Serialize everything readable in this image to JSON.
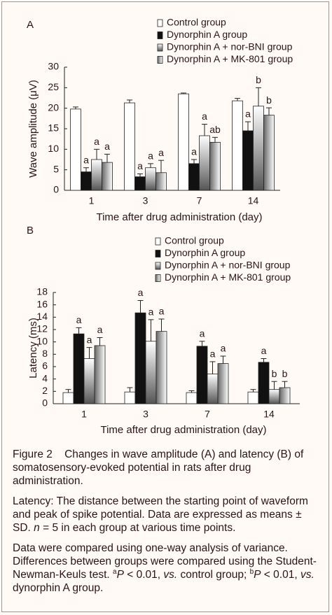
{
  "chart_data": [
    {
      "type": "bar",
      "panel_label": "A",
      "ylabel": "Wave amplitude (μV)",
      "xlabel": "Time after drug administration (day)",
      "categories": [
        "1",
        "3",
        "7",
        "14"
      ],
      "ylim": [
        0,
        30
      ],
      "yticks": [
        0,
        5,
        10,
        15,
        20,
        25,
        30
      ],
      "series": [
        {
          "name": "Control group",
          "color": "#ffffff",
          "values": [
            19.8,
            21.3,
            23.5,
            21.8
          ],
          "errors": [
            0.5,
            0.7,
            0.2,
            0.6
          ],
          "labels": [
            null,
            null,
            null,
            null
          ]
        },
        {
          "name": "Dynorphin A group",
          "color": "#111111",
          "values": [
            4.5,
            3.3,
            6.5,
            14.5
          ],
          "errors": [
            1.0,
            0.7,
            1.0,
            2.2
          ],
          "labels": [
            "a",
            "a",
            "a",
            "a"
          ]
        },
        {
          "name": "Dynorphin A + nor-BNI group",
          "color": "#555555",
          "values": [
            7.5,
            5.5,
            13.3,
            20.5
          ],
          "errors": [
            2.5,
            1.0,
            2.8,
            4.5
          ],
          "labels": [
            "a",
            "a",
            "a",
            "b"
          ]
        },
        {
          "name": "Dynorphin A + MK-801 group",
          "color": "#666666",
          "values": [
            6.8,
            4.3,
            11.7,
            18.3
          ],
          "errors": [
            2.0,
            3.0,
            1.2,
            1.8
          ],
          "labels": [
            "a",
            "a",
            "ab",
            "b"
          ]
        }
      ]
    },
    {
      "type": "bar",
      "panel_label": "B",
      "ylabel": "Latency (ms)",
      "xlabel": "Time after drug administration (day)",
      "categories": [
        "1",
        "3",
        "7",
        "14"
      ],
      "ylim": [
        0,
        18
      ],
      "yticks": [
        0,
        2,
        4,
        6,
        8,
        10,
        12,
        14,
        16,
        18
      ],
      "series": [
        {
          "name": "Control group",
          "color": "#ffffff",
          "values": [
            1.8,
            1.9,
            1.8,
            1.9
          ],
          "errors": [
            0.5,
            0.7,
            0.3,
            0.4
          ],
          "labels": [
            null,
            null,
            null,
            null
          ]
        },
        {
          "name": "Dynorphin A group",
          "color": "#111111",
          "values": [
            11.3,
            14.7,
            9.3,
            6.7
          ],
          "errors": [
            1.0,
            2.0,
            0.8,
            0.6
          ],
          "labels": [
            "a",
            "a",
            "a",
            "a"
          ]
        },
        {
          "name": "Dynorphin A + nor-BNI group",
          "color": "#555555",
          "values": [
            7.3,
            10.1,
            4.8,
            2.3
          ],
          "errors": [
            1.8,
            3.5,
            2.0,
            1.3
          ],
          "labels": [
            "a",
            "a",
            "a",
            "b"
          ]
        },
        {
          "name": "Dynorphin A + MK-801 group",
          "color": "#666666",
          "values": [
            9.4,
            11.7,
            6.5,
            2.6
          ],
          "errors": [
            1.3,
            2.0,
            1.2,
            1.0
          ],
          "labels": [
            "a",
            "a",
            "a",
            "b"
          ]
        }
      ]
    }
  ],
  "caption": {
    "figure": "Figure 2",
    "title": "Changes in wave amplitude (A) and latency (B) of somatosensory-evoked potential in rats after drug administration.",
    "note1": [
      "Latency: The distance between the starting point of waveform and peak of spike potential. Data are expressed as means ± SD. ",
      "n",
      " = 5 in each group at various time points."
    ],
    "note2": [
      "Data were compared using one-way analysis of variance. Differences between groups were compared using the Student-Newman-Keuls test. ",
      "a",
      "P",
      " < 0.01, ",
      "vs.",
      " control group; ",
      "b",
      "P",
      " < 0.01, ",
      "vs.",
      " dynorphin A group."
    ]
  }
}
